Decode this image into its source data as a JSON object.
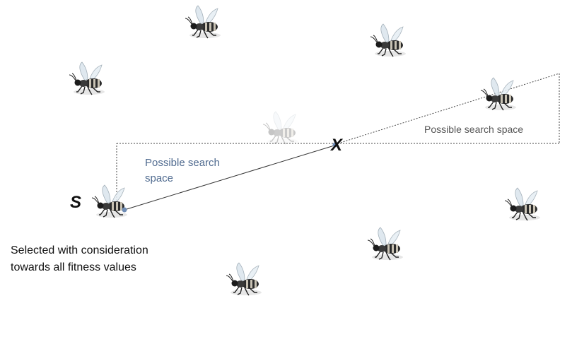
{
  "labels": {
    "s": "S",
    "x": "X",
    "search_space_left": "Possible search space",
    "search_space_right": "Possible search space",
    "selected_note": "Selected with consideration towards all fitness values"
  },
  "bees": [
    {
      "name": "bee-top-center",
      "faded": false
    },
    {
      "name": "bee-top-right",
      "faded": false
    },
    {
      "name": "bee-left",
      "faded": false
    },
    {
      "name": "bee-ghost-center",
      "faded": true
    },
    {
      "name": "bee-far-right-upper",
      "faded": false
    },
    {
      "name": "bee-s",
      "faded": false
    },
    {
      "name": "bee-right-lower",
      "faded": false
    },
    {
      "name": "bee-bottom-center",
      "faded": false
    },
    {
      "name": "bee-bottom-left",
      "faded": false
    }
  ],
  "colors": {
    "line": "#333333",
    "dashed": "#444444",
    "point_marker": "#6f8cb5",
    "search_text": "#4f6a8f"
  }
}
